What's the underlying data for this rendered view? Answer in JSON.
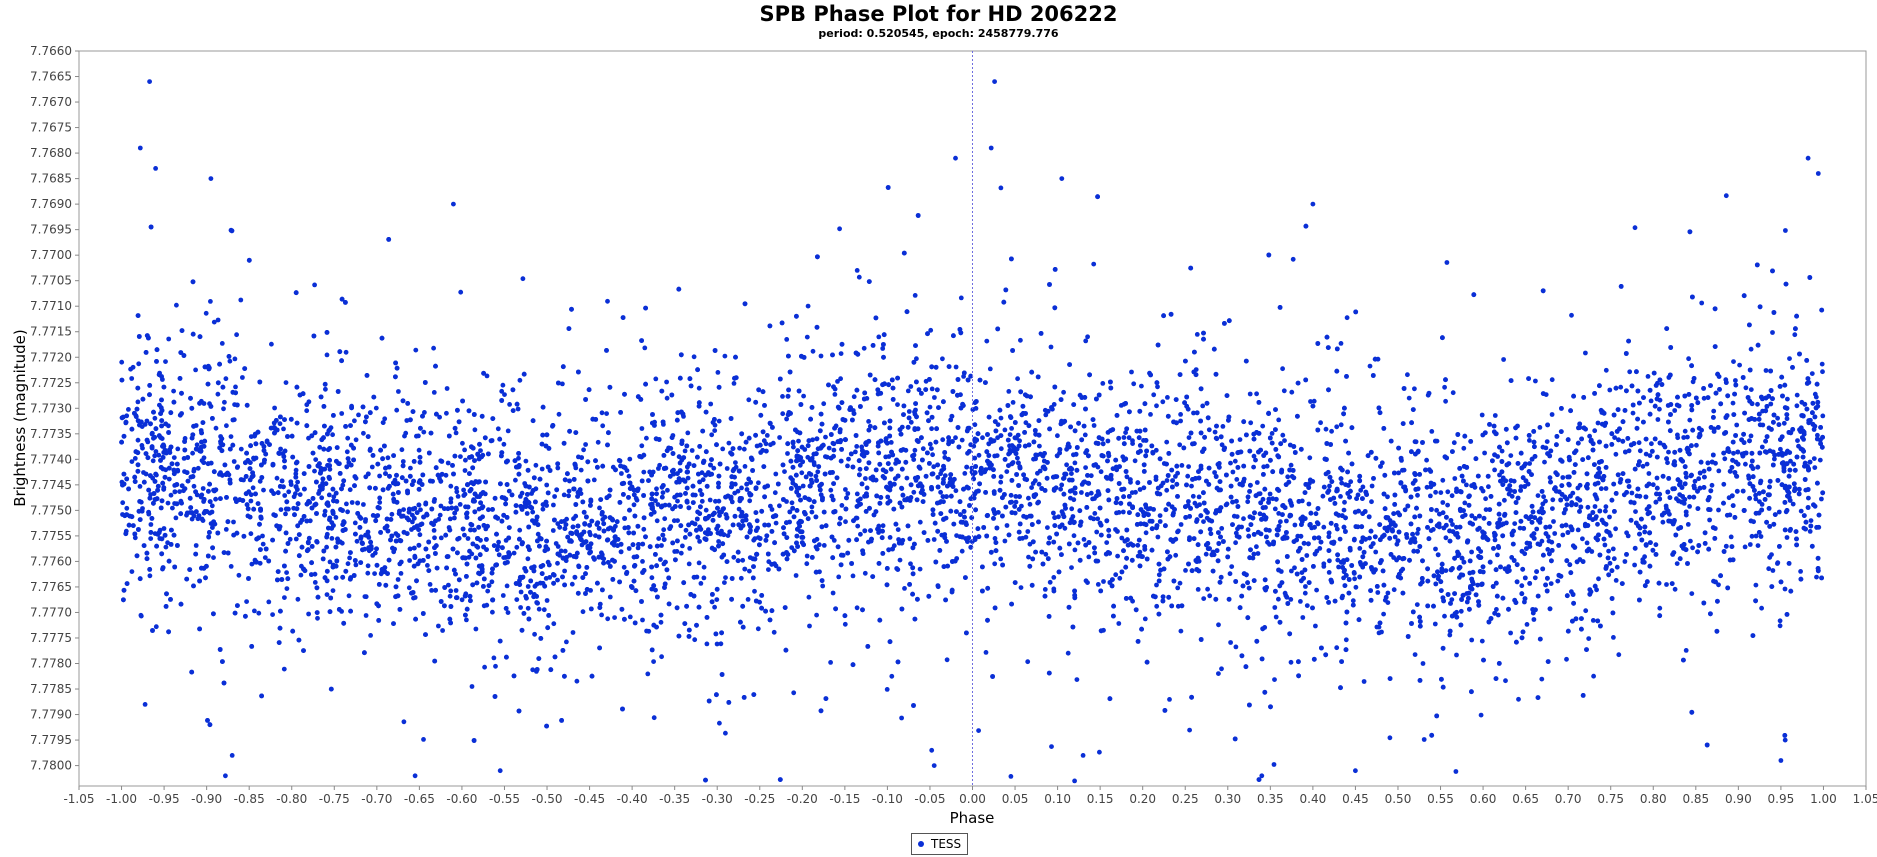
{
  "chart_data": {
    "type": "scatter",
    "title": "SPB Phase Plot for HD 206222",
    "subtitle": "period: 0.520545, epoch: 2458779.776",
    "xlabel": "Phase",
    "ylabel": "Brightness (magnitude)",
    "xlim": [
      -1.05,
      1.05
    ],
    "ylim": [
      7.766,
      7.7804
    ],
    "y_inverted": true,
    "x_ticks": [
      "-1.05",
      "-1.00",
      "-0.95",
      "-0.90",
      "-0.85",
      "-0.80",
      "-0.75",
      "-0.70",
      "-0.65",
      "-0.60",
      "-0.55",
      "-0.50",
      "-0.45",
      "-0.40",
      "-0.35",
      "-0.30",
      "-0.25",
      "-0.20",
      "-0.15",
      "-0.10",
      "-0.05",
      "0.00",
      "0.05",
      "0.10",
      "0.15",
      "0.20",
      "0.25",
      "0.30",
      "0.35",
      "0.40",
      "0.45",
      "0.50",
      "0.55",
      "0.60",
      "0.65",
      "0.70",
      "0.75",
      "0.80",
      "0.85",
      "0.90",
      "0.95",
      "1.00",
      "1.05"
    ],
    "y_ticks": [
      "7.7660",
      "7.7665",
      "7.7670",
      "7.7675",
      "7.7680",
      "7.7685",
      "7.7690",
      "7.7695",
      "7.7700",
      "7.7705",
      "7.7710",
      "7.7715",
      "7.7720",
      "7.7725",
      "7.7730",
      "7.7735",
      "7.7740",
      "7.7745",
      "7.7750",
      "7.7755",
      "7.7760",
      "7.7765",
      "7.7770",
      "7.7775",
      "7.7780",
      "7.7785",
      "7.7790",
      "7.7795",
      "7.7800"
    ],
    "grid": false,
    "zero_line": {
      "x": 0.0,
      "style": "dashed"
    },
    "legend_position": "bottom-center",
    "series": [
      {
        "name": "TESS",
        "color": "#0a2fd6",
        "marker": "circle",
        "envelope": {
          "phase": [
            -1.0,
            -0.9,
            -0.8,
            -0.7,
            -0.6,
            -0.5,
            -0.4,
            -0.3,
            -0.2,
            -0.1,
            0.0,
            0.1,
            0.2,
            0.3,
            0.4,
            0.5,
            0.6,
            0.7,
            0.8,
            0.9,
            1.0
          ],
          "mean_mag": [
            7.7741,
            7.7744,
            7.7747,
            7.775,
            7.7752,
            7.7753,
            7.7752,
            7.7749,
            7.7745,
            7.7742,
            7.7741,
            7.7744,
            7.7747,
            7.775,
            7.7752,
            7.7753,
            7.7752,
            7.7749,
            7.7745,
            7.7742,
            7.7741
          ],
          "core_sigma": 0.0011,
          "outer_spread": [
            7.7681,
            7.7804
          ]
        },
        "outliers": [
          [
            -0.967,
            7.7666
          ],
          [
            -0.978,
            7.7679
          ],
          [
            -0.96,
            7.7683
          ],
          [
            -0.895,
            7.7685
          ],
          [
            -0.61,
            7.769
          ],
          [
            0.026,
            7.7666
          ],
          [
            0.022,
            7.7679
          ],
          [
            -0.02,
            7.7681
          ],
          [
            0.105,
            7.7685
          ],
          [
            0.4,
            7.769
          ],
          [
            0.982,
            7.7681
          ],
          [
            0.994,
            7.7684
          ],
          [
            -0.878,
            7.7802
          ],
          [
            -0.87,
            7.7798
          ],
          [
            0.12,
            7.7803
          ],
          [
            0.13,
            7.7798
          ],
          [
            -0.655,
            7.7802
          ],
          [
            -0.555,
            7.7801
          ],
          [
            0.95,
            7.7799
          ],
          [
            0.955,
            7.7795
          ],
          [
            0.34,
            7.7802
          ],
          [
            0.45,
            7.7801
          ],
          [
            -0.045,
            7.78
          ],
          [
            -0.048,
            7.7797
          ]
        ]
      }
    ]
  }
}
